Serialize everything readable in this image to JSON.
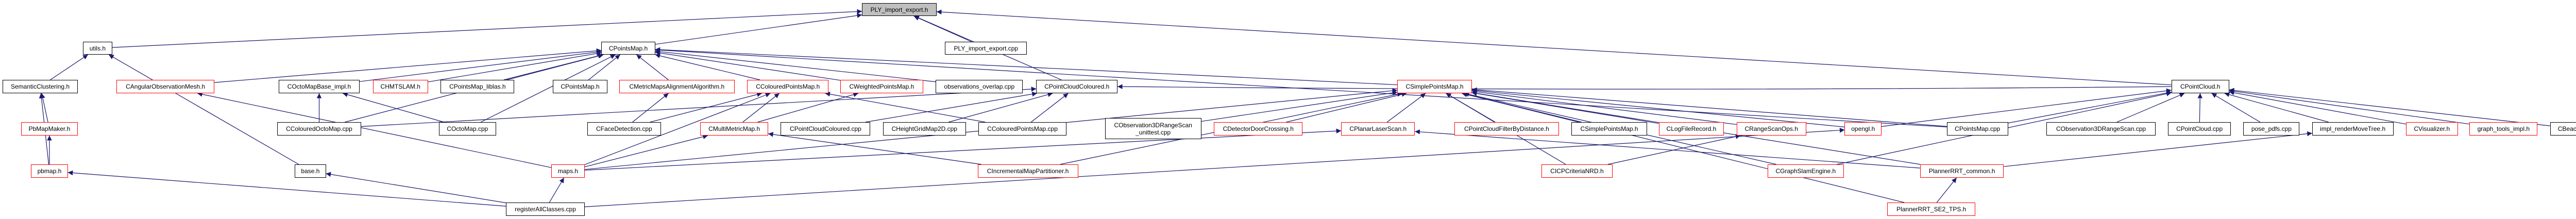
{
  "colors": {
    "edge": "#191970",
    "node_border_default": "#000000",
    "node_border_truncated": "#ff0000",
    "root_fill": "#bfbfbf"
  },
  "nodes": [
    {
      "id": "ply_h",
      "label": [
        "PLY_import_export.h"
      ],
      "kind": "root"
    },
    {
      "id": "utils_h",
      "label": [
        "utils.h"
      ],
      "kind": "black"
    },
    {
      "id": "cpointsmap_h",
      "label": [
        "CPointsMap.h"
      ],
      "kind": "black"
    },
    {
      "id": "ply_cpp",
      "label": [
        "PLY_import_export.cpp"
      ],
      "kind": "black"
    },
    {
      "id": "semantic_h",
      "label": [
        "SemanticClustering.h"
      ],
      "kind": "black"
    },
    {
      "id": "angular_h",
      "label": [
        "CAngularObservationMesh.h"
      ],
      "kind": "red"
    },
    {
      "id": "octobase_h",
      "label": [
        "COctoMapBase_impl.h"
      ],
      "kind": "black"
    },
    {
      "id": "hmtslam_h",
      "label": [
        "CHMTSLAM.h"
      ],
      "kind": "red"
    },
    {
      "id": "liblas_h",
      "label": [
        "CPointsMap_liblas.h"
      ],
      "kind": "black"
    },
    {
      "id": "cpointsmap2_h",
      "label": [
        "CPointsMap.h"
      ],
      "kind": "black"
    },
    {
      "id": "align_h",
      "label": [
        "CMetricMapsAlignmentAlgorithm.h"
      ],
      "kind": "red"
    },
    {
      "id": "colpm_h",
      "label": [
        "CColouredPointsMap.h"
      ],
      "kind": "red"
    },
    {
      "id": "weighted_h",
      "label": [
        "CWeightedPointsMap.h"
      ],
      "kind": "red"
    },
    {
      "id": "obsoverlap_cpp",
      "label": [
        "observations_overlap.cpp"
      ],
      "kind": "black"
    },
    {
      "id": "pcc_h",
      "label": [
        "CPointCloudColoured.h"
      ],
      "kind": "black"
    },
    {
      "id": "spm_h",
      "label": [
        "CSimplePointsMap.h"
      ],
      "kind": "red"
    },
    {
      "id": "pointcloud_h",
      "label": [
        "CPointCloud.h"
      ],
      "kind": "black"
    },
    {
      "id": "pbmapmaker_h",
      "label": [
        "PbMapMaker.h"
      ],
      "kind": "red"
    },
    {
      "id": "coloctomap_cpp",
      "label": [
        "CColouredOctoMap.cpp"
      ],
      "kind": "black"
    },
    {
      "id": "octomap_cpp",
      "label": [
        "COctoMap.cpp"
      ],
      "kind": "black"
    },
    {
      "id": "face_cpp",
      "label": [
        "CFaceDetection.cpp"
      ],
      "kind": "black"
    },
    {
      "id": "multimetric_h",
      "label": [
        "CMultiMetricMap.h"
      ],
      "kind": "red"
    },
    {
      "id": "pcc_cpp",
      "label": [
        "CPointCloudColoured.cpp"
      ],
      "kind": "black"
    },
    {
      "id": "heightgrid_cpp",
      "label": [
        "CHeightGridMap2D.cpp"
      ],
      "kind": "black"
    },
    {
      "id": "colpm_cpp",
      "label": [
        "CColouredPointsMap.cpp"
      ],
      "kind": "black"
    },
    {
      "id": "obs3d_unittest_cpp",
      "label": [
        "CObservation3DRangeScan",
        "_unittest.cpp"
      ],
      "kind": "black"
    },
    {
      "id": "door_h",
      "label": [
        "CDetectorDoorCrossing.h"
      ],
      "kind": "red"
    },
    {
      "id": "planar_h",
      "label": [
        "CPlanarLaserScan.h"
      ],
      "kind": "red"
    },
    {
      "id": "filterdist_h",
      "label": [
        "CPointCloudFilterByDistance.h"
      ],
      "kind": "red"
    },
    {
      "id": "spm2_h",
      "label": [
        "CSimplePointsMap.h"
      ],
      "kind": "black"
    },
    {
      "id": "logfile_h",
      "label": [
        "CLogFileRecord.h"
      ],
      "kind": "red"
    },
    {
      "id": "rangescanops_h",
      "label": [
        "CRangeScanOps.h"
      ],
      "kind": "red"
    },
    {
      "id": "opengl_h",
      "label": [
        "opengl.h"
      ],
      "kind": "red"
    },
    {
      "id": "pointsmap_cpp",
      "label": [
        "CPointsMap.cpp"
      ],
      "kind": "black"
    },
    {
      "id": "obs3d_cpp",
      "label": [
        "CObservation3DRangeScan.cpp"
      ],
      "kind": "black"
    },
    {
      "id": "pointcloud_cpp",
      "label": [
        "CPointCloud.cpp"
      ],
      "kind": "black"
    },
    {
      "id": "posepdfs_cpp",
      "label": [
        "pose_pdfs.cpp"
      ],
      "kind": "black"
    },
    {
      "id": "rendertree_h",
      "label": [
        "impl_renderMoveTree.h"
      ],
      "kind": "black"
    },
    {
      "id": "visualizer_h",
      "label": [
        "CVisualizer.h"
      ],
      "kind": "red"
    },
    {
      "id": "graphtools_h",
      "label": [
        "graph_tools_impl.h"
      ],
      "kind": "red"
    },
    {
      "id": "beacon_cpp",
      "label": [
        "CBeacon.cpp"
      ],
      "kind": "black"
    },
    {
      "id": "pbmap_h",
      "label": [
        "pbmap.h"
      ],
      "kind": "red"
    },
    {
      "id": "base_h",
      "label": [
        "base.h"
      ],
      "kind": "black"
    },
    {
      "id": "maps_h",
      "label": [
        "maps.h"
      ],
      "kind": "red"
    },
    {
      "id": "incremental_h",
      "label": [
        "CIncrementalMapPartitioner.h"
      ],
      "kind": "red"
    },
    {
      "id": "icp_h",
      "label": [
        "CICPCriteriaNRD.h"
      ],
      "kind": "red"
    },
    {
      "id": "graphslam_h",
      "label": [
        "CGraphSlamEngine.h"
      ],
      "kind": "red"
    },
    {
      "id": "rrtcommon_h",
      "label": [
        "PlannerRRT_common.h"
      ],
      "kind": "red"
    },
    {
      "id": "registerall_cpp",
      "label": [
        "registerAllClasses.cpp"
      ],
      "kind": "black"
    },
    {
      "id": "rrtse2_h",
      "label": [
        "PlannerRRT_SE2_TPS.h"
      ],
      "kind": "red"
    }
  ],
  "edges": [
    [
      "utils_h",
      "ply_h"
    ],
    [
      "cpointsmap_h",
      "ply_h"
    ],
    [
      "ply_cpp",
      "ply_h"
    ],
    [
      "pcc_h",
      "ply_h"
    ],
    [
      "pointcloud_h",
      "ply_h"
    ],
    [
      "semantic_h",
      "utils_h"
    ],
    [
      "base_h",
      "utils_h"
    ],
    [
      "pbmapmaker_h",
      "semantic_h"
    ],
    [
      "pbmap_h",
      "semantic_h"
    ],
    [
      "pbmap_h",
      "pbmapmaker_h"
    ],
    [
      "angular_h",
      "cpointsmap_h"
    ],
    [
      "octobase_h",
      "cpointsmap_h"
    ],
    [
      "hmtslam_h",
      "cpointsmap_h"
    ],
    [
      "liblas_h",
      "cpointsmap_h"
    ],
    [
      "cpointsmap2_h",
      "cpointsmap_h"
    ],
    [
      "align_h",
      "cpointsmap_h"
    ],
    [
      "colpm_h",
      "cpointsmap_h"
    ],
    [
      "weighted_h",
      "cpointsmap_h"
    ],
    [
      "spm_h",
      "cpointsmap_h"
    ],
    [
      "octomap_cpp",
      "cpointsmap_h"
    ],
    [
      "coloctomap_cpp",
      "cpointsmap_h"
    ],
    [
      "pointsmap_cpp",
      "cpointsmap_h"
    ],
    [
      "obsoverlap_cpp",
      "cpointsmap_h"
    ],
    [
      "coloctomap_cpp",
      "octobase_h"
    ],
    [
      "octomap_cpp",
      "octobase_h"
    ],
    [
      "face_cpp",
      "align_h"
    ],
    [
      "face_cpp",
      "colpm_h"
    ],
    [
      "multimetric_h",
      "colpm_h"
    ],
    [
      "multimetric_h",
      "weighted_h"
    ],
    [
      "colpm_cpp",
      "colpm_h"
    ],
    [
      "maps_h",
      "angular_h"
    ],
    [
      "maps_h",
      "colpm_h"
    ],
    [
      "maps_h",
      "multimetric_h"
    ],
    [
      "maps_h",
      "spm_h"
    ],
    [
      "maps_h",
      "planar_h"
    ],
    [
      "incremental_h",
      "multimetric_h"
    ],
    [
      "incremental_h",
      "spm_h"
    ],
    [
      "pcc_cpp",
      "pcc_h"
    ],
    [
      "colpm_cpp",
      "pcc_h"
    ],
    [
      "heightgrid_cpp",
      "pcc_h"
    ],
    [
      "coloctomap_cpp",
      "pcc_h"
    ],
    [
      "pointcloud_h",
      "pcc_h"
    ],
    [
      "obs3d_unittest_cpp",
      "spm_h"
    ],
    [
      "door_h",
      "spm_h"
    ],
    [
      "planar_h",
      "spm_h"
    ],
    [
      "filterdist_h",
      "spm_h"
    ],
    [
      "spm2_h",
      "spm_h"
    ],
    [
      "logfile_h",
      "spm_h"
    ],
    [
      "rangescanops_h",
      "spm_h"
    ],
    [
      "icp_h",
      "spm_h"
    ],
    [
      "icp_h",
      "rangescanops_h"
    ],
    [
      "graphslam_h",
      "spm_h"
    ],
    [
      "opengl_h",
      "spm_h"
    ],
    [
      "pointsmap_cpp",
      "spm_h"
    ],
    [
      "rrtcommon_h",
      "spm_h"
    ],
    [
      "rrtse2_h",
      "spm_h"
    ],
    [
      "rrtse2_h",
      "rrtcommon_h"
    ],
    [
      "graphslam_h",
      "pointcloud_h"
    ],
    [
      "opengl_h",
      "pointcloud_h"
    ],
    [
      "pointsmap_cpp",
      "pointcloud_h"
    ],
    [
      "obs3d_cpp",
      "pointcloud_h"
    ],
    [
      "pointcloud_cpp",
      "pointcloud_h"
    ],
    [
      "posepdfs_cpp",
      "pointcloud_h"
    ],
    [
      "rendertree_h",
      "pointcloud_h"
    ],
    [
      "visualizer_h",
      "pointcloud_h"
    ],
    [
      "graphtools_h",
      "pointcloud_h"
    ],
    [
      "beacon_cpp",
      "pointcloud_h"
    ],
    [
      "rrtcommon_h",
      "rendertree_h"
    ],
    [
      "rrtcommon_h",
      "planar_h"
    ],
    [
      "registerall_cpp",
      "pbmap_h"
    ],
    [
      "registerall_cpp",
      "base_h"
    ],
    [
      "registerall_cpp",
      "maps_h"
    ],
    [
      "registerall_cpp",
      "opengl_h"
    ]
  ]
}
